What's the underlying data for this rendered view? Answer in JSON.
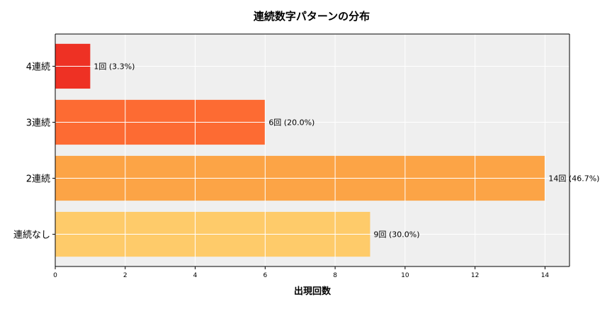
{
  "chart_data": {
    "type": "bar",
    "orientation": "horizontal",
    "title": "連続数字パターンの分布",
    "xlabel": "出現回数",
    "ylabel": "",
    "categories": [
      "連続なし",
      "2連続",
      "3連続",
      "4連続"
    ],
    "values": [
      9,
      14,
      6,
      1
    ],
    "data_labels": [
      "9回 (30.0%)",
      "14回 (46.7%)",
      "6回 (20.0%)",
      "1回 (3.3%)"
    ],
    "colors": [
      "#fecb6a",
      "#fca446",
      "#fd6b33",
      "#ee3124"
    ],
    "xlim": [
      0,
      14.7
    ],
    "xticks": [
      0,
      2,
      4,
      6,
      8,
      10,
      12,
      14
    ],
    "grid": true,
    "background": "#efefef"
  }
}
